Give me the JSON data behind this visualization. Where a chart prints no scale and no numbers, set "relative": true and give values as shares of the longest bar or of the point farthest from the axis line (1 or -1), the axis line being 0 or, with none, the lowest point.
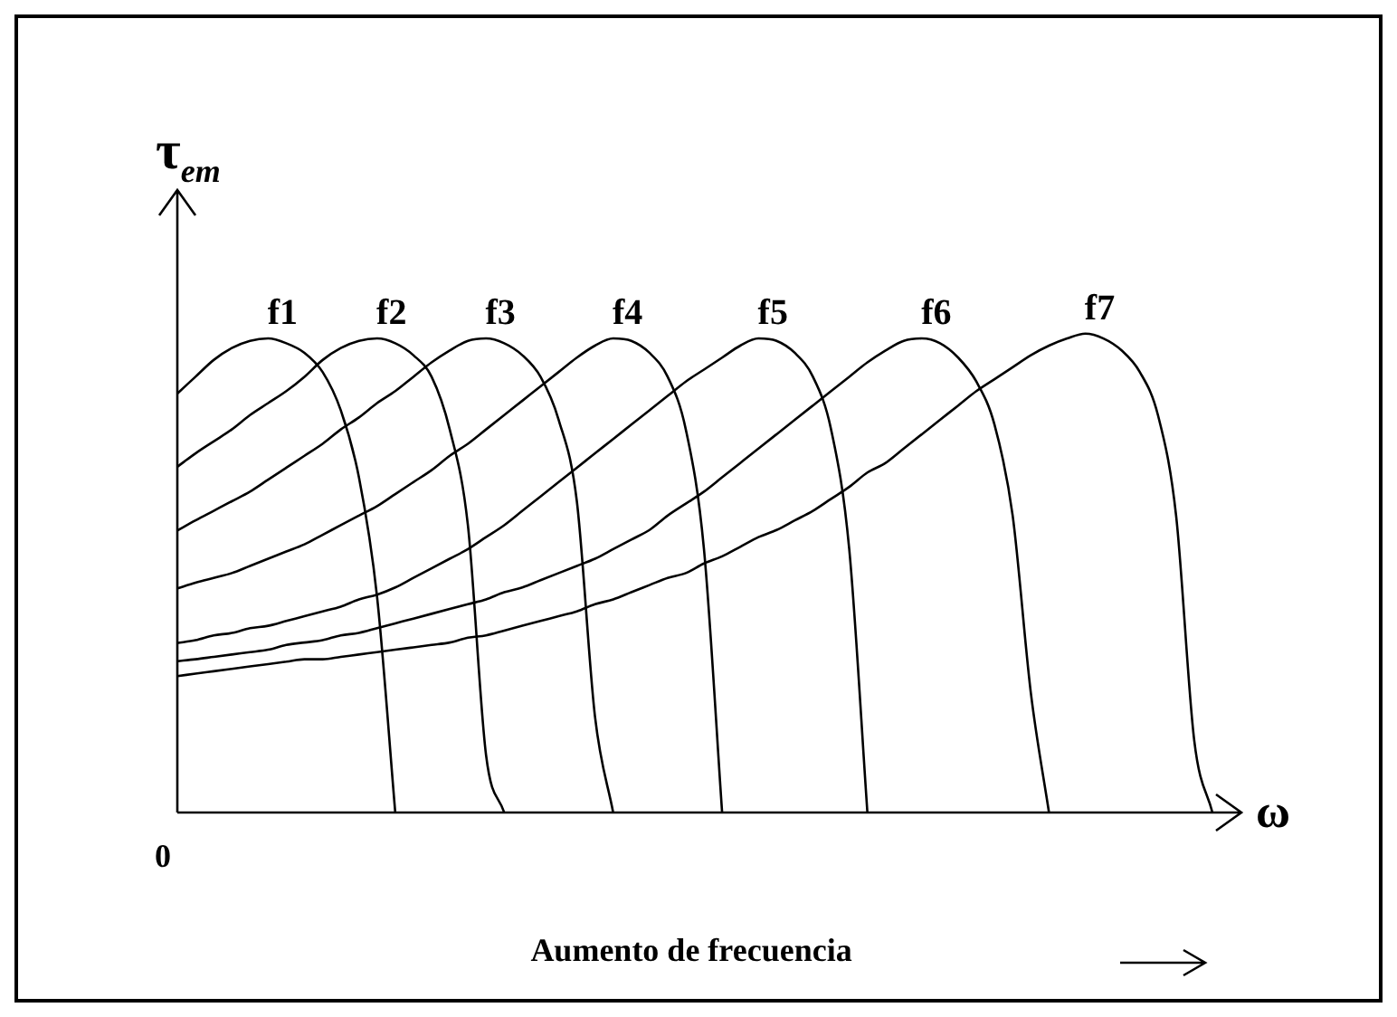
{
  "chart_data": {
    "type": "line",
    "relative": true,
    "ylabel": "τ$_{em}$",
    "xlabel": "ω",
    "legend": false,
    "marker": "none",
    "line_style": "solid",
    "annotations": [
      "0",
      "Aumento de frecuencia"
    ],
    "categories": [
      null,
      null,
      null,
      null,
      null,
      null,
      null,
      null,
      null,
      null,
      null,
      null,
      null,
      null,
      null,
      null,
      null,
      null,
      null,
      null,
      null,
      null,
      null,
      null,
      null,
      null,
      null,
      null,
      null,
      null,
      null,
      null,
      null,
      null,
      null,
      null,
      null,
      null,
      null,
      null,
      null,
      null,
      null,
      null,
      null,
      null,
      null,
      null,
      null,
      null,
      null,
      null,
      null,
      null,
      null,
      null,
      null,
      null
    ],
    "series": [
      {
        "name": "f1",
        "color": "#000000",
        "values": [
          0.875,
          0.91,
          0.945,
          0.97,
          0.985,
          0.99,
          0.98,
          0.96,
          0.92,
          0.84,
          0.7,
          0.45,
          0,
          null,
          null,
          null,
          null,
          null,
          null,
          null,
          null,
          null,
          null,
          null,
          null,
          null,
          null,
          null,
          null,
          null,
          null,
          null,
          null,
          null,
          null,
          null,
          null,
          null,
          null,
          null,
          null,
          null,
          null,
          null,
          null,
          null,
          null,
          null,
          null,
          null,
          null,
          null,
          null,
          null,
          null,
          null,
          null,
          null
        ]
      },
      {
        "name": "f2",
        "color": "#000000",
        "values": [
          0.722,
          0.75,
          0.775,
          0.8,
          0.83,
          0.855,
          0.88,
          0.91,
          0.945,
          0.97,
          0.985,
          0.99,
          0.98,
          0.955,
          0.91,
          0.8,
          0.6,
          0.12,
          0,
          null,
          null,
          null,
          null,
          null,
          null,
          null,
          null,
          null,
          null,
          null,
          null,
          null,
          null,
          null,
          null,
          null,
          null,
          null,
          null,
          null,
          null,
          null,
          null,
          null,
          null,
          null,
          null,
          null,
          null,
          null,
          null,
          null,
          null,
          null,
          null,
          null,
          null,
          null
        ]
      },
      {
        "name": "f3",
        "color": "#000000",
        "values": [
          0.589,
          0.61,
          0.63,
          0.65,
          0.67,
          0.695,
          0.72,
          0.745,
          0.77,
          0.8,
          0.825,
          0.855,
          0.88,
          0.91,
          0.94,
          0.965,
          0.985,
          0.99,
          0.98,
          0.955,
          0.91,
          0.82,
          0.65,
          0.2,
          0,
          null,
          null,
          null,
          null,
          null,
          null,
          null,
          null,
          null,
          null,
          null,
          null,
          null,
          null,
          null,
          null,
          null,
          null,
          null,
          null,
          null,
          null,
          null,
          null,
          null,
          null,
          null,
          null,
          null,
          null,
          null,
          null,
          null
        ]
      },
      {
        "name": "f4",
        "color": "#000000",
        "values": [
          0.468,
          0.48,
          0.49,
          0.5,
          0.515,
          0.53,
          0.545,
          0.56,
          0.58,
          0.6,
          0.62,
          0.64,
          0.665,
          0.69,
          0.715,
          0.745,
          0.77,
          0.8,
          0.83,
          0.86,
          0.89,
          0.92,
          0.95,
          0.975,
          0.99,
          0.985,
          0.96,
          0.91,
          0.8,
          0.55,
          0,
          null,
          null,
          null,
          null,
          null,
          null,
          null,
          null,
          null,
          null,
          null,
          null,
          null,
          null,
          null,
          null,
          null,
          null,
          null,
          null,
          null,
          null,
          null,
          null,
          null,
          null,
          null
        ]
      },
      {
        "name": "f5",
        "color": "#000000",
        "values": [
          0.354,
          0.36,
          0.37,
          0.375,
          0.385,
          0.39,
          0.4,
          0.41,
          0.42,
          0.43,
          0.445,
          0.455,
          0.47,
          0.49,
          0.51,
          0.53,
          0.55,
          0.575,
          0.6,
          0.63,
          0.66,
          0.69,
          0.72,
          0.75,
          0.78,
          0.81,
          0.84,
          0.87,
          0.9,
          0.925,
          0.95,
          0.975,
          0.99,
          0.985,
          0.96,
          0.91,
          0.8,
          0.55,
          0,
          null,
          null,
          null,
          null,
          null,
          null,
          null,
          null,
          null,
          null,
          null,
          null,
          null,
          null,
          null,
          null,
          null,
          null,
          null
        ]
      },
      {
        "name": "f6",
        "color": "#000000",
        "values": [
          0.316,
          0.32,
          0.325,
          0.33,
          0.335,
          0.34,
          0.35,
          0.355,
          0.36,
          0.37,
          0.375,
          0.385,
          0.395,
          0.405,
          0.415,
          0.425,
          0.435,
          0.445,
          0.46,
          0.47,
          0.485,
          0.5,
          0.515,
          0.53,
          0.55,
          0.57,
          0.59,
          0.62,
          0.645,
          0.67,
          0.7,
          0.73,
          0.76,
          0.79,
          0.82,
          0.85,
          0.88,
          0.91,
          0.94,
          0.965,
          0.985,
          0.99,
          0.98,
          0.95,
          0.9,
          0.81,
          0.62,
          0.25,
          0,
          null,
          null,
          null,
          null,
          null,
          null,
          null,
          null,
          null
        ]
      },
      {
        "name": "f7",
        "color": "#000000",
        "values": [
          0.285,
          0.29,
          0.295,
          0.3,
          0.305,
          0.31,
          0.315,
          0.32,
          0.32,
          0.325,
          0.33,
          0.335,
          0.34,
          0.345,
          0.35,
          0.355,
          0.365,
          0.37,
          0.38,
          0.39,
          0.4,
          0.41,
          0.42,
          0.435,
          0.445,
          0.46,
          0.475,
          0.49,
          0.5,
          0.52,
          0.535,
          0.555,
          0.575,
          0.59,
          0.61,
          0.63,
          0.655,
          0.68,
          0.71,
          0.73,
          0.76,
          0.79,
          0.82,
          0.85,
          0.88,
          0.905,
          0.93,
          0.955,
          0.975,
          0.99,
          1.0,
          0.99,
          0.965,
          0.92,
          0.83,
          0.62,
          0.15,
          0
        ]
      }
    ]
  }
}
